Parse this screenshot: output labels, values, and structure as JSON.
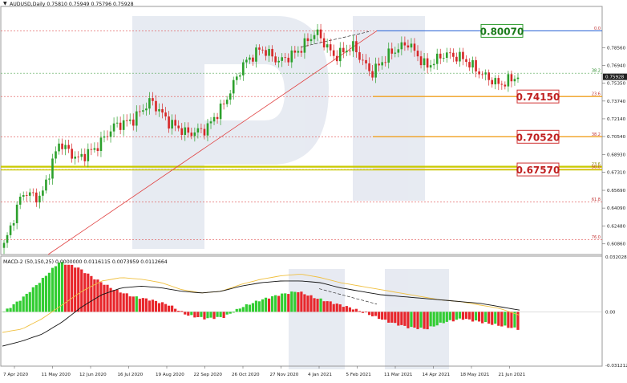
{
  "header": {
    "symbol_line": "AUDUSD,Daily  0.75810 0.75949 0.75796 0.75928"
  },
  "indicator": {
    "label": "MACD-2 (50,150,25) 0.0000000 0.0116115 0.0073959 0.0112664"
  },
  "colors": {
    "bull_candle": "#2ca02c",
    "bear_candle": "#d62728",
    "support_line": "#f0a020",
    "resistance_line": "#3a6fd8",
    "zone_line": "#c9c900",
    "fib_line": "#e05050",
    "macd_green": "#32cd32",
    "macd_red": "#e8262b",
    "signal_gold": "#f0c040",
    "watermark": "#dfe4ee"
  },
  "chart_data": {
    "type": "candlestick",
    "price_axis": {
      "range": [
        0.599,
        0.822
      ],
      "ticks": [
        "0.78560",
        "0.76940",
        "0.75350",
        "0.73740",
        "0.72140",
        "0.70540",
        "0.68930",
        "0.67310",
        "0.65690",
        "0.64090",
        "0.62480",
        "0.60860"
      ],
      "current_price": "0.75928"
    },
    "time_axis": {
      "labels": [
        "7 Apr 2020",
        "11 May 2020",
        "12 Jun 2020",
        "16 Jul 2020",
        "19 Aug 2020",
        "22 Sep 2020",
        "26 Oct 2020",
        "27 Nov 2020",
        "4 Jan 2021",
        "5 Feb 2021",
        "11 Mar 2021",
        "14 Apr 2021",
        "18 May 2021",
        "21 Jun 2021"
      ]
    },
    "fib_levels": [
      {
        "label": "0.0",
        "price": 0.8007
      },
      {
        "label": "38.2",
        "price": 0.7625
      },
      {
        "label": "23.6",
        "price": 0.7415
      },
      {
        "label": "38.2",
        "price": 0.7052
      },
      {
        "label": "23.6",
        "price": 0.6782
      },
      {
        "label": "50.0",
        "price": 0.6757
      },
      {
        "label": "61.8",
        "price": 0.6465
      },
      {
        "label": "76.0",
        "price": 0.6125
      }
    ],
    "price_boxes": [
      {
        "label": "0.80070",
        "price": 0.8007,
        "style": "green"
      },
      {
        "label": "0.74150",
        "price": 0.7415,
        "style": "red"
      },
      {
        "label": "0.70520",
        "price": 0.7052,
        "style": "red"
      },
      {
        "label": "0.67570",
        "price": 0.6757,
        "style": "red"
      }
    ],
    "price_waypoints": [
      0.607,
      0.655,
      0.65,
      0.7,
      0.685,
      0.695,
      0.715,
      0.72,
      0.738,
      0.718,
      0.708,
      0.712,
      0.735,
      0.77,
      0.785,
      0.773,
      0.782,
      0.8,
      0.777,
      0.787,
      0.762,
      0.78,
      0.79,
      0.768,
      0.78,
      0.776,
      0.762,
      0.752,
      0.76
    ],
    "macd_axis": {
      "range": [
        -0.0312125,
        0.032028
      ],
      "ticks": [
        "0.032028",
        "0.00",
        "-0.0312125"
      ]
    },
    "macd_histogram_waypoints": [
      0.0,
      0.008,
      0.018,
      0.029,
      0.026,
      0.019,
      0.013,
      0.009,
      0.007,
      0.004,
      -0.002,
      -0.004,
      -0.003,
      0.003,
      0.007,
      0.01,
      0.012,
      0.008,
      0.005,
      0.002,
      -0.002,
      -0.006,
      -0.009,
      -0.01,
      -0.006,
      -0.004,
      -0.006,
      -0.008,
      -0.01
    ],
    "macd_signal_waypoints": [
      -0.012,
      -0.01,
      -0.004,
      0.004,
      0.012,
      0.018,
      0.02,
      0.019,
      0.017,
      0.013,
      0.011,
      0.012,
      0.016,
      0.019,
      0.021,
      0.022,
      0.02,
      0.017,
      0.015,
      0.013,
      0.011,
      0.009,
      0.007,
      0.006,
      0.004,
      0.002,
      -0.002
    ],
    "macd_line_waypoints": [
      -0.02,
      -0.017,
      -0.013,
      -0.006,
      0.003,
      0.01,
      0.014,
      0.015,
      0.014,
      0.012,
      0.011,
      0.012,
      0.015,
      0.017,
      0.018,
      0.018,
      0.017,
      0.014,
      0.012,
      0.01,
      0.009,
      0.008,
      0.007,
      0.006,
      0.005,
      0.003,
      0.001
    ]
  }
}
